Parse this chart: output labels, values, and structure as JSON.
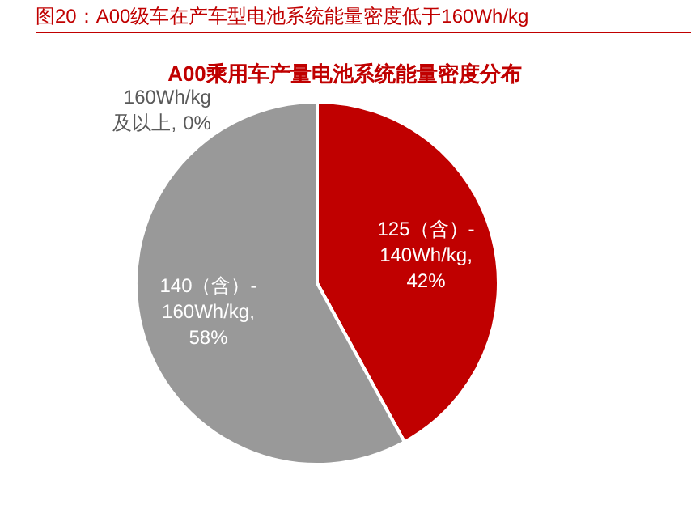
{
  "chart_data": {
    "type": "pie",
    "title": "图20：A00级车在产车型电池系统能量密度低于160Wh/kg",
    "subtitle": "A00乘用车产量电池系统能量密度分布",
    "categories": [
      "125（含）-140Wh/kg",
      "140（含）-160Wh/kg",
      "160Wh/kg及以上"
    ],
    "values": [
      42,
      58,
      0
    ],
    "colors": [
      "#c00000",
      "#999999",
      "#999999"
    ],
    "value_labels": [
      ", 42%",
      ", 58%",
      ", 0%"
    ]
  }
}
